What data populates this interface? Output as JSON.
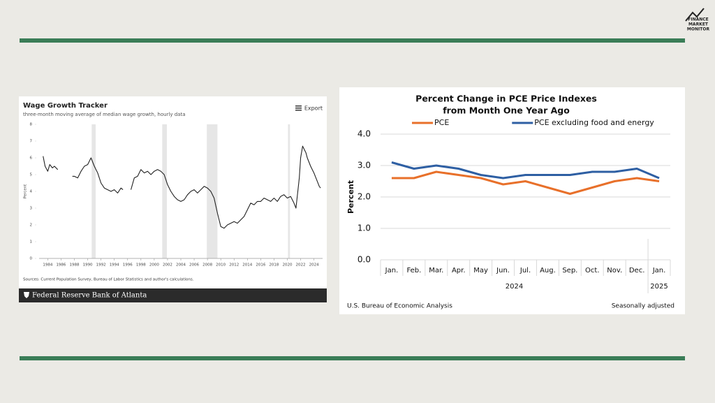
{
  "logo": [
    "FINANCE",
    "MARKET",
    "MONITOR"
  ],
  "chart_data": [
    {
      "type": "line",
      "title": "Wage Growth Tracker",
      "subtitle": "three-month moving average of median wage growth, hourly data",
      "export": "Export",
      "ylabel": "Percent",
      "source": "Sources: Current Population Survey, Bureau of Labor Statistics and author's calculations.",
      "footer": "Federal Reserve Bank of Atlanta",
      "color": "#222222",
      "grid": false,
      "xlim": [
        1982.7,
        2025.3
      ],
      "xticks": [
        1984,
        1986,
        1988,
        1990,
        1992,
        1994,
        1996,
        1998,
        2000,
        2002,
        2004,
        2006,
        2008,
        2010,
        2012,
        2014,
        2016,
        2018,
        2020,
        2022,
        2024
      ],
      "ylim": [
        0,
        8
      ],
      "yticks": [
        0,
        1,
        2,
        3,
        4,
        5,
        6,
        7,
        8
      ],
      "recession_periods": [
        [
          1990.6,
          1991.2
        ],
        [
          2001.2,
          2001.9
        ],
        [
          2007.9,
          2009.5
        ],
        [
          2020.1,
          2020.4
        ]
      ],
      "x": [
        1983.3,
        1983.6,
        1984,
        1984.3,
        1984.7,
        1985,
        1985.5,
        1986.5,
        1987.7,
        1988,
        1988.5,
        1989,
        1989.5,
        1990,
        1990.5,
        1991,
        1991.5,
        1992,
        1992.5,
        1993,
        1993.5,
        1994,
        1994.5,
        1995,
        1995.3,
        1996,
        1996.5,
        1997,
        1997.5,
        1998,
        1998.5,
        1999,
        1999.5,
        2000,
        2000.5,
        2001,
        2001.5,
        2002,
        2002.5,
        2003,
        2003.5,
        2004,
        2004.5,
        2005,
        2005.5,
        2006,
        2006.5,
        2007,
        2007.5,
        2008,
        2008.5,
        2009,
        2009.5,
        2010,
        2010.5,
        2011,
        2011.5,
        2012,
        2012.5,
        2013,
        2013.5,
        2014,
        2014.5,
        2015,
        2015.5,
        2016,
        2016.5,
        2017,
        2017.5,
        2018,
        2018.5,
        2019,
        2019.5,
        2020,
        2020.5,
        2021,
        2021.3,
        2021.8,
        2022,
        2022.3,
        2022.8,
        2023,
        2023.5,
        2024,
        2024.5,
        2024.8,
        2025
      ],
      "values": [
        6.1,
        5.5,
        5.2,
        5.6,
        5.4,
        5.5,
        5.3,
        null,
        4.9,
        4.9,
        4.8,
        5.2,
        5.5,
        5.6,
        6.0,
        5.5,
        5.1,
        4.5,
        4.2,
        4.1,
        4.0,
        4.1,
        3.9,
        4.2,
        4.1,
        null,
        4.1,
        4.8,
        4.9,
        5.3,
        5.1,
        5.2,
        5.0,
        5.2,
        5.3,
        5.2,
        5.0,
        4.4,
        4.0,
        3.7,
        3.5,
        3.4,
        3.5,
        3.8,
        4.0,
        4.1,
        3.9,
        4.1,
        4.3,
        4.2,
        4.0,
        3.6,
        2.7,
        1.9,
        1.8,
        2.0,
        2.1,
        2.2,
        2.1,
        2.3,
        2.5,
        2.9,
        3.3,
        3.2,
        3.4,
        3.4,
        3.6,
        3.5,
        3.4,
        3.6,
        3.4,
        3.7,
        3.8,
        3.6,
        3.7,
        3.3,
        3.0,
        4.8,
        6.0,
        6.7,
        6.3,
        6.0,
        5.5,
        5.1,
        4.6,
        4.3,
        4.2
      ]
    },
    {
      "type": "line",
      "title": [
        "Percent Change in PCE Price Indexes",
        "from Month One Year Ago"
      ],
      "ylabel": "Percent",
      "source": "U.S. Bureau of Economic Analysis",
      "note": "Seasonally adjusted",
      "grid": true,
      "ylim": [
        0,
        4
      ],
      "yticks": [
        {
          "value": 0,
          "label": "0.0"
        },
        {
          "value": 1,
          "label": "1.0"
        },
        {
          "value": 2,
          "label": "2.0"
        },
        {
          "value": 3,
          "label": "3.0"
        },
        {
          "value": 4,
          "label": "4.0"
        }
      ],
      "category_groups": [
        {
          "label": "2024",
          "categories": [
            "Jan.",
            "Feb.",
            "Mar.",
            "Apr.",
            "May",
            "Jun.",
            "Jul.",
            "Aug.",
            "Sep.",
            "Oct.",
            "Nov.",
            "Dec."
          ]
        },
        {
          "label": "2025",
          "categories": [
            "Jan."
          ]
        }
      ],
      "series": [
        {
          "name": "PCE",
          "color": "#e8702a",
          "values": [
            2.6,
            2.6,
            2.8,
            2.7,
            2.6,
            2.4,
            2.5,
            2.3,
            2.1,
            2.3,
            2.5,
            2.6,
            2.5
          ]
        },
        {
          "name": "PCE excluding food and energy",
          "color": "#2e5fa3",
          "values": [
            3.1,
            2.9,
            3.0,
            2.9,
            2.7,
            2.6,
            2.7,
            2.7,
            2.7,
            2.8,
            2.8,
            2.9,
            2.6
          ]
        }
      ]
    }
  ]
}
